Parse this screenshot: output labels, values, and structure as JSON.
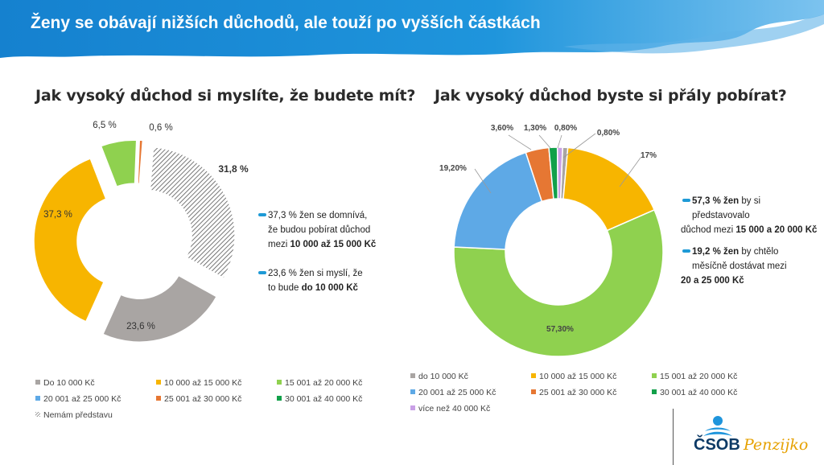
{
  "slide_title": "Ženy se obávají nižších důchodů, ale touží po vyšších částkách",
  "colors": {
    "header_blue": "#1f8fd6",
    "grey": "#a9a5a3",
    "orange_yellow": "#f7b500",
    "green": "#8fd14f",
    "blue": "#5ea9e6",
    "orange": "#e67733",
    "dark_green": "#12a04a",
    "purple": "#c9a0e6",
    "callout_dash": "#1e9ad6"
  },
  "chart_data": [
    {
      "type": "pie",
      "title": "Jak vysoký důchod si myslíte, že budete mít?",
      "categories": [
        "Do 10 000 Kč",
        "10 000 až 15 000 Kč",
        "15 001 až 20 000 Kč",
        "20 001 až 25 000 Kč",
        "25 001 až 30 000 Kč",
        "30 001 až 40 000 Kč",
        "Nemám představu"
      ],
      "values": [
        23.6,
        37.3,
        6.5,
        0,
        0.6,
        0,
        31.8
      ],
      "data_labels": [
        "23,6 %",
        "37,3 %",
        "6,5 %",
        "",
        "0,6 %",
        "",
        "31,8 %"
      ],
      "legend_placement": "bottom",
      "exploded": true
    },
    {
      "type": "pie",
      "title": "Jak vysoký důchod byste si přály pobírat?",
      "categories": [
        "do 10 000 Kč",
        "10 000 až 15 000 Kč",
        "15 001 až 20 000 Kč",
        "20 001 až 25 000 Kč",
        "25 001 až 30 000 Kč",
        "30 001 až 40 000 Kč",
        "více než 40 000 Kč"
      ],
      "values": [
        0.8,
        17,
        57.3,
        19.2,
        3.6,
        1.3,
        0.8
      ],
      "data_labels": [
        "0,80%",
        "17%",
        "57,30%",
        "19,20%",
        "3,60%",
        "1,30%",
        "0,80%"
      ],
      "legend_placement": "bottom",
      "exploded": false
    }
  ],
  "callouts_left": [
    {
      "value": "37,3 % žen se domnívá,",
      "l2": "že budou pobírat důchod",
      "l3a": "mezi ",
      "l3b": "10 000 až 15 000 Kč"
    },
    {
      "value": "23,6 % žen si myslí, že",
      "l2a": "to bude ",
      "l2b": "do 10 000 Kč"
    }
  ],
  "callouts_right": [
    {
      "v1": "57,3 % žen",
      "v1b": " by si",
      "l2": "představovalo",
      "l3a": "důchod mezi ",
      "l3b": "15 000 a 20 000 Kč"
    },
    {
      "v1": "19,2 % žen",
      "v1b": " by chtělo",
      "l2": "měsíčně dostávat mezi",
      "l3": "20 a 25 000 Kč"
    }
  ],
  "logo": {
    "brand": "ČSOB",
    "product": "Penzijko"
  }
}
